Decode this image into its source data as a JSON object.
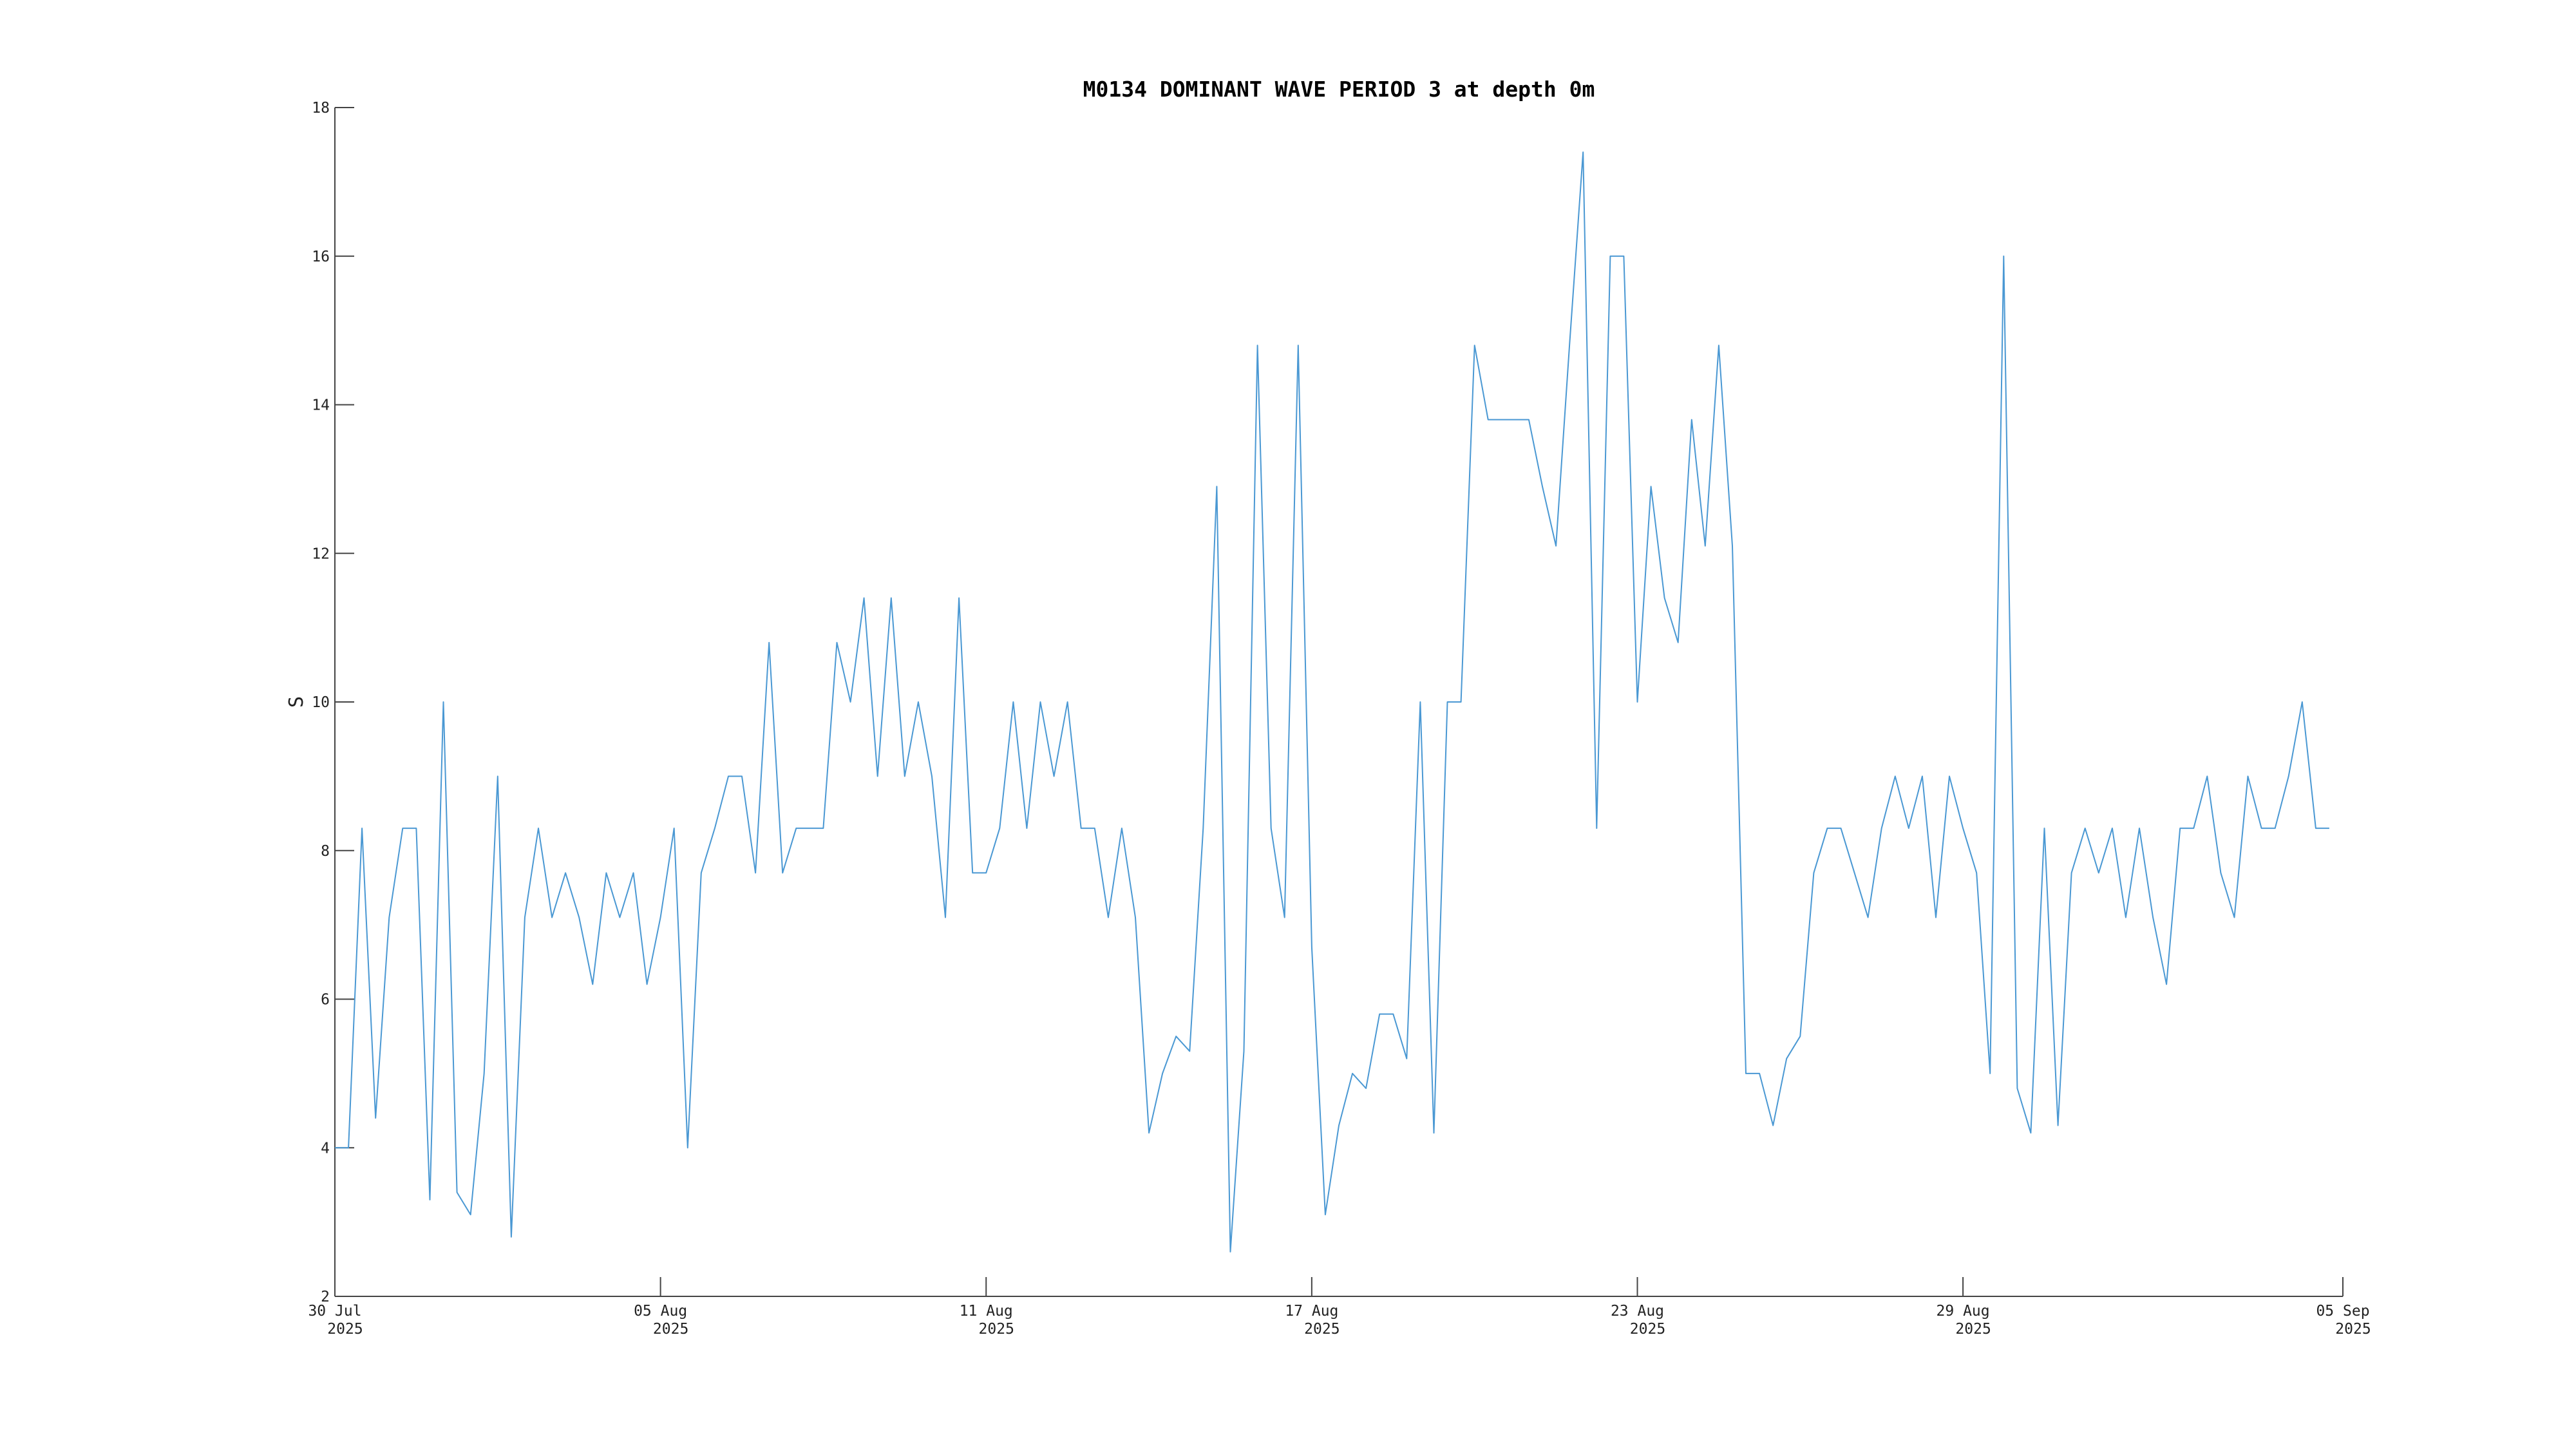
{
  "chart_data": {
    "type": "line",
    "title": "M0134 DOMINANT WAVE PERIOD 3 at depth 0m",
    "ylabel": "S",
    "color": "#4a98d3",
    "ylim": [
      2,
      18
    ],
    "yticks": [
      2,
      4,
      6,
      8,
      10,
      12,
      14,
      16,
      18
    ],
    "xlim": [
      "2025-07-30T00:00",
      "2025-09-05T00:00"
    ],
    "xticks": [
      {
        "value": "2025-07-30T00:00",
        "label": [
          "30 Jul",
          "2025"
        ]
      },
      {
        "value": "2025-08-05T00:00",
        "label": [
          "05 Aug",
          "2025"
        ]
      },
      {
        "value": "2025-08-11T00:00",
        "label": [
          "11 Aug",
          "2025"
        ]
      },
      {
        "value": "2025-08-17T00:00",
        "label": [
          "17 Aug",
          "2025"
        ]
      },
      {
        "value": "2025-08-23T00:00",
        "label": [
          "23 Aug",
          "2025"
        ]
      },
      {
        "value": "2025-08-29T00:00",
        "label": [
          "29 Aug",
          "2025"
        ]
      },
      {
        "value": "2025-09-05T00:00",
        "label": [
          "05 Sep",
          "2025"
        ]
      }
    ],
    "x": [
      "2025-07-30T00:00",
      "2025-07-30T06:00",
      "2025-07-30T12:00",
      "2025-07-30T18:00",
      "2025-07-31T00:00",
      "2025-07-31T06:00",
      "2025-07-31T12:00",
      "2025-07-31T18:00",
      "2025-08-01T00:00",
      "2025-08-01T06:00",
      "2025-08-01T12:00",
      "2025-08-01T18:00",
      "2025-08-02T00:00",
      "2025-08-02T06:00",
      "2025-08-02T12:00",
      "2025-08-02T18:00",
      "2025-08-03T00:00",
      "2025-08-03T06:00",
      "2025-08-03T12:00",
      "2025-08-03T18:00",
      "2025-08-04T00:00",
      "2025-08-04T06:00",
      "2025-08-04T12:00",
      "2025-08-04T18:00",
      "2025-08-05T00:00",
      "2025-08-05T06:00",
      "2025-08-05T12:00",
      "2025-08-05T18:00",
      "2025-08-06T00:00",
      "2025-08-06T06:00",
      "2025-08-06T12:00",
      "2025-08-06T18:00",
      "2025-08-07T00:00",
      "2025-08-07T06:00",
      "2025-08-07T12:00",
      "2025-08-07T18:00",
      "2025-08-08T00:00",
      "2025-08-08T06:00",
      "2025-08-08T12:00",
      "2025-08-08T18:00",
      "2025-08-09T00:00",
      "2025-08-09T06:00",
      "2025-08-09T12:00",
      "2025-08-09T18:00",
      "2025-08-10T00:00",
      "2025-08-10T06:00",
      "2025-08-10T12:00",
      "2025-08-10T18:00",
      "2025-08-11T00:00",
      "2025-08-11T06:00",
      "2025-08-11T12:00",
      "2025-08-11T18:00",
      "2025-08-12T00:00",
      "2025-08-12T06:00",
      "2025-08-12T12:00",
      "2025-08-12T18:00",
      "2025-08-13T00:00",
      "2025-08-13T06:00",
      "2025-08-13T12:00",
      "2025-08-13T18:00",
      "2025-08-14T00:00",
      "2025-08-14T06:00",
      "2025-08-14T12:00",
      "2025-08-14T18:00",
      "2025-08-15T00:00",
      "2025-08-15T06:00",
      "2025-08-15T12:00",
      "2025-08-15T18:00",
      "2025-08-16T00:00",
      "2025-08-16T06:00",
      "2025-08-16T12:00",
      "2025-08-16T18:00",
      "2025-08-17T00:00",
      "2025-08-17T06:00",
      "2025-08-17T12:00",
      "2025-08-17T18:00",
      "2025-08-18T00:00",
      "2025-08-18T06:00",
      "2025-08-18T12:00",
      "2025-08-18T18:00",
      "2025-08-19T00:00",
      "2025-08-19T06:00",
      "2025-08-19T12:00",
      "2025-08-19T18:00",
      "2025-08-20T00:00",
      "2025-08-20T06:00",
      "2025-08-20T12:00",
      "2025-08-20T18:00",
      "2025-08-21T00:00",
      "2025-08-21T06:00",
      "2025-08-21T12:00",
      "2025-08-21T18:00",
      "2025-08-22T00:00",
      "2025-08-22T06:00",
      "2025-08-22T12:00",
      "2025-08-22T18:00",
      "2025-08-23T00:00",
      "2025-08-23T06:00",
      "2025-08-23T12:00",
      "2025-08-23T18:00",
      "2025-08-24T00:00",
      "2025-08-24T06:00",
      "2025-08-24T12:00",
      "2025-08-24T18:00",
      "2025-08-25T00:00",
      "2025-08-25T06:00",
      "2025-08-25T12:00",
      "2025-08-25T18:00",
      "2025-08-26T00:00",
      "2025-08-26T06:00",
      "2025-08-26T12:00",
      "2025-08-26T18:00",
      "2025-08-27T00:00",
      "2025-08-27T06:00",
      "2025-08-27T12:00",
      "2025-08-27T18:00",
      "2025-08-28T00:00",
      "2025-08-28T06:00",
      "2025-08-28T12:00",
      "2025-08-28T18:00",
      "2025-08-29T00:00",
      "2025-08-29T06:00",
      "2025-08-29T12:00",
      "2025-08-29T18:00",
      "2025-08-30T00:00",
      "2025-08-30T06:00",
      "2025-08-30T12:00",
      "2025-08-30T18:00",
      "2025-08-31T00:00",
      "2025-08-31T06:00",
      "2025-08-31T12:00",
      "2025-08-31T18:00",
      "2025-09-01T00:00",
      "2025-09-01T06:00",
      "2025-09-01T12:00",
      "2025-09-01T18:00",
      "2025-09-02T00:00",
      "2025-09-02T06:00",
      "2025-09-02T12:00",
      "2025-09-02T18:00",
      "2025-09-03T00:00",
      "2025-09-03T06:00",
      "2025-09-03T12:00",
      "2025-09-03T18:00",
      "2025-09-04T00:00",
      "2025-09-04T06:00",
      "2025-09-04T12:00",
      "2025-09-04T18:00"
    ],
    "values": [
      4,
      4,
      8.3,
      4.4,
      7.1,
      8.3,
      8.3,
      3.3,
      10,
      3.4,
      3.1,
      5,
      9,
      2.8,
      7.1,
      8.3,
      7.1,
      7.7,
      7.1,
      6.2,
      7.7,
      7.1,
      7.7,
      6.2,
      7.1,
      8.3,
      4,
      7.7,
      8.3,
      9,
      9,
      7.7,
      10.8,
      7.7,
      8.3,
      8.3,
      8.3,
      10.8,
      10,
      11.4,
      9,
      11.4,
      9,
      10,
      9,
      7.1,
      11.4,
      7.7,
      7.7,
      8.3,
      10,
      8.3,
      10,
      9,
      10,
      8.3,
      8.3,
      7.1,
      8.3,
      7.1,
      4.2,
      5,
      5.5,
      5.3,
      8.3,
      12.9,
      2.6,
      5.3,
      14.8,
      8.3,
      7.1,
      14.8,
      6.7,
      3.1,
      4.3,
      5,
      4.8,
      5.8,
      5.8,
      5.2,
      10,
      4.2,
      10,
      10,
      14.8,
      13.8,
      13.8,
      13.8,
      13.8,
      12.9,
      12.1,
      14.8,
      17.4,
      8.3,
      16,
      16,
      10,
      12.9,
      11.4,
      10.8,
      13.8,
      12.1,
      14.8,
      12.1,
      5,
      5,
      4.3,
      5.2,
      5.5,
      7.7,
      8.3,
      8.3,
      7.7,
      7.1,
      8.3,
      9,
      8.3,
      9,
      7.1,
      9,
      8.3,
      7.7,
      5,
      16,
      4.8,
      4.2,
      8.3,
      4.3,
      7.7,
      8.3,
      7.7,
      8.3,
      7.1,
      8.3,
      7.1,
      6.2,
      8.3,
      8.3,
      9,
      7.7,
      7.1,
      9,
      8.3,
      8.3,
      9,
      10,
      8.3,
      8.3
    ]
  }
}
